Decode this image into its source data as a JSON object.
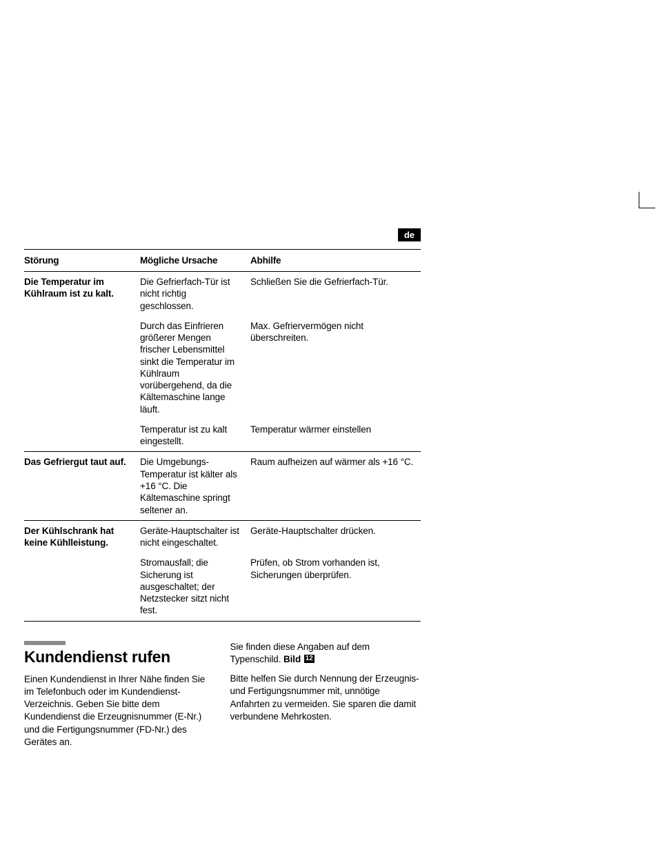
{
  "lang_tag": "de",
  "table": {
    "headers": [
      "Störung",
      "Mögliche Ursache",
      "Abhilfe"
    ],
    "groups": [
      {
        "stoer": "Die Temperatur im Kühlraum ist zu kalt.",
        "rows": [
          {
            "ursache": "Die Gefrierfach-Tür ist nicht richtig geschlossen.",
            "abhilfe": "Schließen Sie die Gefrierfach-Tür."
          },
          {
            "ursache": "Durch das Einfrieren größerer Mengen frischer Lebensmittel sinkt die Temperatur im Kühlraum vorübergehend, da die Kältemaschine lange läuft.",
            "abhilfe": "Max. Gefriervermögen nicht überschreiten."
          },
          {
            "ursache": "Temperatur ist zu kalt eingestellt.",
            "abhilfe": "Temperatur wärmer einstellen"
          }
        ]
      },
      {
        "stoer": "Das Gefriergut taut auf.",
        "rows": [
          {
            "ursache": "Die Umgebungs-Temperatur ist kälter als +16 °C. Die Kältemaschine springt seltener an.",
            "abhilfe": "Raum aufheizen auf wärmer als +16 °C."
          }
        ]
      },
      {
        "stoer": "Der Kühlschrank hat keine Kühlleistung.",
        "rows": [
          {
            "ursache": "Geräte-Hauptschalter ist nicht eingeschaltet.",
            "abhilfe": "Geräte-Hauptschalter drücken."
          },
          {
            "ursache": "Stromausfall; die Sicherung ist ausgeschaltet; der Netzstecker sitzt nicht fest.",
            "abhilfe": "Prüfen, ob Strom vorhanden ist, Sicherungen überprüfen."
          }
        ]
      }
    ]
  },
  "section": {
    "title": "Kundendienst rufen",
    "left_p1": "Einen Kundendienst in Ihrer Nähe finden Sie im Telefonbuch oder im Kundendienst-Verzeichnis. Geben Sie bitte dem Kundendienst die Erzeugnisnummer (E-Nr.) und die Fertigungsnummer (FD-Nr.) des Gerätes an.",
    "right_p1_pre": "Sie finden diese Angaben auf dem Typenschild. ",
    "bild_label": "Bild",
    "bild_num": "12",
    "right_p2": "Bitte helfen Sie durch Nennung der Erzeugnis- und Fertigungsnummer mit, unnötige Anfahrten zu vermeiden. Sie sparen die damit verbundene Mehrkosten."
  },
  "colors": {
    "text": "#000000",
    "bg": "#ffffff",
    "bar": "#8a8a8a"
  }
}
